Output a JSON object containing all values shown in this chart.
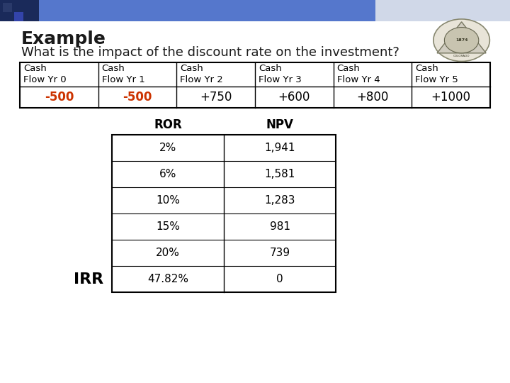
{
  "title": "Example",
  "subtitle": "What is the impact of the discount rate on the investment?",
  "cf_headers": [
    "Cash\nFlow Yr 0",
    "Cash\nFlow Yr 1",
    "Cash\nFlow Yr 2",
    "Cash\nFlow Yr 3",
    "Cash\nFlow Yr 4",
    "Cash\nFlow Yr 5"
  ],
  "cf_values": [
    "-500",
    "-500",
    "+750",
    "+600",
    "+800",
    "+1000"
  ],
  "cf_value_colors": [
    "#cc3300",
    "#cc3300",
    "#000000",
    "#000000",
    "#000000",
    "#000000"
  ],
  "ror_header": "ROR",
  "npv_header": "NPV",
  "ror_values": [
    "2%",
    "6%",
    "10%",
    "15%",
    "20%",
    "47.82%"
  ],
  "npv_values": [
    "1,941",
    "1,581",
    "1,283",
    "981",
    "739",
    "0"
  ],
  "irr_label": "IRR",
  "bg_color": "#ffffff",
  "title_color": "#1a1a1a",
  "subtitle_color": "#1a1a1a",
  "title_fontsize": 18,
  "subtitle_fontsize": 13,
  "table_fontsize": 11,
  "irr_fontsize": 16
}
